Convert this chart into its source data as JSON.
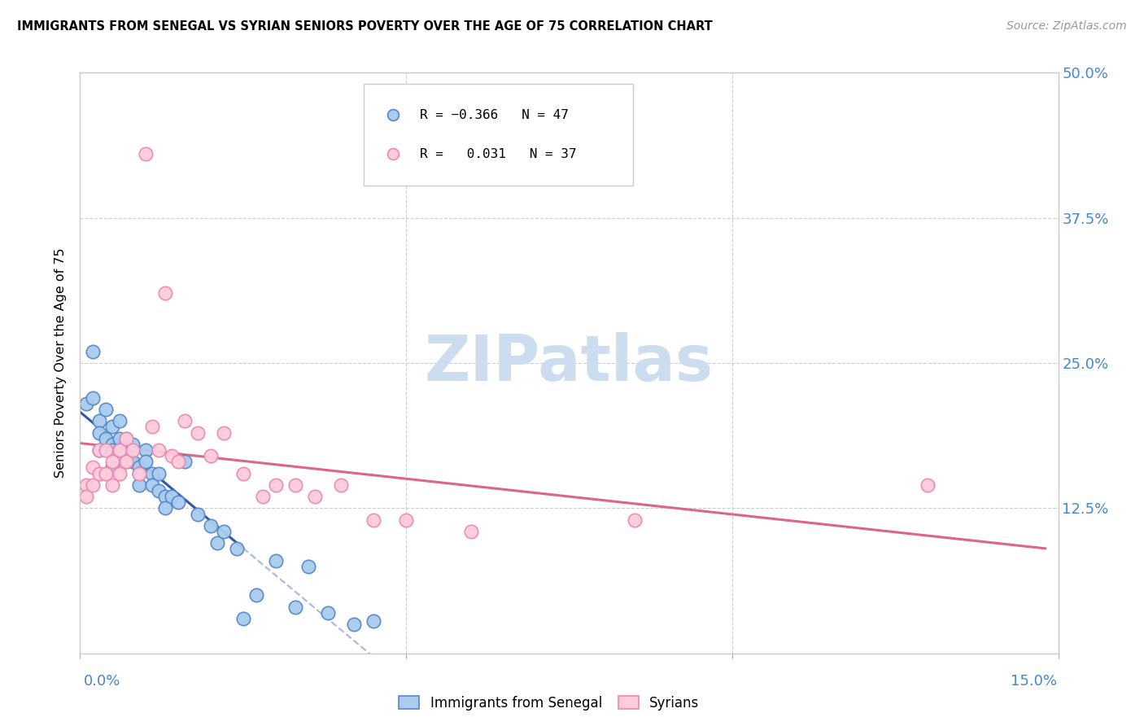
{
  "title": "IMMIGRANTS FROM SENEGAL VS SYRIAN SENIORS POVERTY OVER THE AGE OF 75 CORRELATION CHART",
  "source": "Source: ZipAtlas.com",
  "ylabel": "Seniors Poverty Over the Age of 75",
  "xlim": [
    0.0,
    0.15
  ],
  "ylim": [
    0.0,
    0.5
  ],
  "yticks": [
    0.0,
    0.125,
    0.25,
    0.375,
    0.5
  ],
  "yticklabels_right": [
    "",
    "12.5%",
    "25.0%",
    "37.5%",
    "50.0%"
  ],
  "xtick_positions": [
    0.0,
    0.05,
    0.1,
    0.15
  ],
  "blue_dot_color": "#aaccee",
  "blue_dot_edge": "#5588cc",
  "pink_dot_color": "#ffccdd",
  "pink_dot_edge": "#ee88aa",
  "blue_line_color": "#3355aa",
  "pink_line_color": "#dd6688",
  "dash_color": "#aabbdd",
  "watermark_color": "#ddeeff",
  "grid_color": "#cccccc",
  "axis_label_color": "#4488cc",
  "senegal_x": [
    0.001,
    0.002,
    0.002,
    0.003,
    0.003,
    0.003,
    0.004,
    0.004,
    0.005,
    0.005,
    0.005,
    0.005,
    0.006,
    0.006,
    0.006,
    0.007,
    0.007,
    0.007,
    0.008,
    0.008,
    0.009,
    0.009,
    0.009,
    0.01,
    0.01,
    0.011,
    0.011,
    0.012,
    0.012,
    0.013,
    0.013,
    0.014,
    0.015,
    0.016,
    0.018,
    0.02,
    0.021,
    0.022,
    0.024,
    0.025,
    0.027,
    0.03,
    0.033,
    0.035,
    0.038,
    0.042,
    0.045
  ],
  "senegal_y": [
    0.215,
    0.26,
    0.22,
    0.2,
    0.19,
    0.175,
    0.21,
    0.185,
    0.195,
    0.18,
    0.175,
    0.16,
    0.2,
    0.185,
    0.175,
    0.185,
    0.175,
    0.165,
    0.165,
    0.18,
    0.16,
    0.155,
    0.145,
    0.175,
    0.165,
    0.155,
    0.145,
    0.155,
    0.14,
    0.135,
    0.125,
    0.135,
    0.13,
    0.165,
    0.12,
    0.11,
    0.095,
    0.105,
    0.09,
    0.03,
    0.05,
    0.08,
    0.04,
    0.075,
    0.035,
    0.025,
    0.028
  ],
  "syrian_x": [
    0.001,
    0.001,
    0.002,
    0.002,
    0.003,
    0.003,
    0.004,
    0.004,
    0.005,
    0.005,
    0.006,
    0.006,
    0.007,
    0.007,
    0.008,
    0.009,
    0.01,
    0.011,
    0.012,
    0.013,
    0.014,
    0.015,
    0.016,
    0.018,
    0.02,
    0.022,
    0.025,
    0.028,
    0.03,
    0.033,
    0.036,
    0.04,
    0.045,
    0.05,
    0.06,
    0.085,
    0.13
  ],
  "syrian_y": [
    0.145,
    0.135,
    0.16,
    0.145,
    0.175,
    0.155,
    0.175,
    0.155,
    0.165,
    0.145,
    0.175,
    0.155,
    0.185,
    0.165,
    0.175,
    0.155,
    0.43,
    0.195,
    0.175,
    0.31,
    0.17,
    0.165,
    0.2,
    0.19,
    0.17,
    0.19,
    0.155,
    0.135,
    0.145,
    0.145,
    0.135,
    0.145,
    0.115,
    0.115,
    0.105,
    0.115,
    0.145
  ]
}
